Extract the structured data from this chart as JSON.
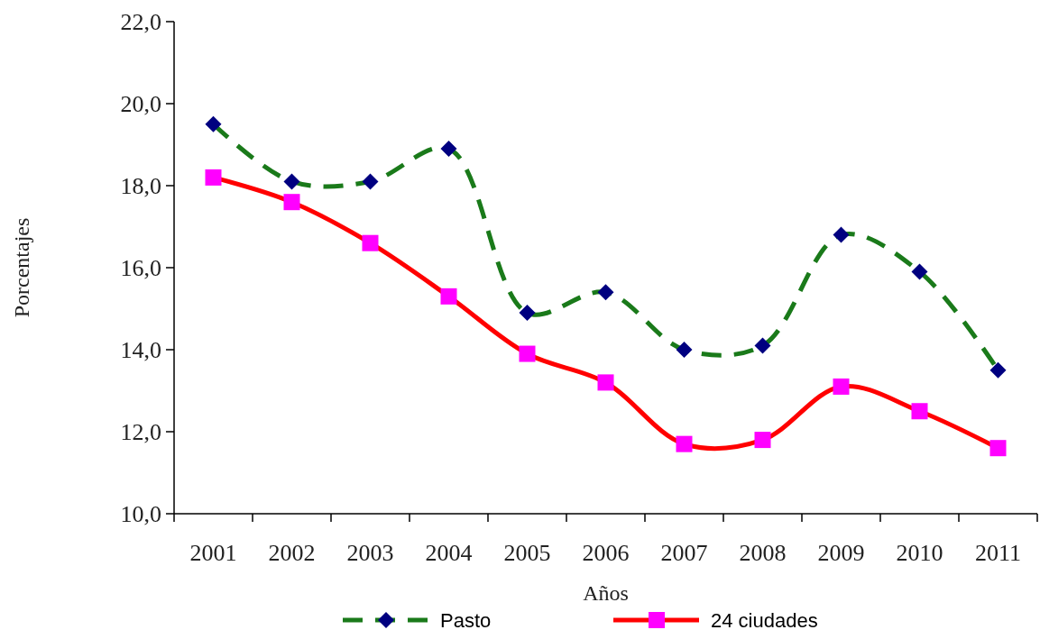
{
  "chart_data": {
    "type": "line",
    "xlabel": "Años",
    "ylabel": "Porcentajes",
    "categories": [
      "2001",
      "2002",
      "2003",
      "2004",
      "2005",
      "2006",
      "2007",
      "2008",
      "2009",
      "2010",
      "2011"
    ],
    "series": [
      {
        "name": "Pasto",
        "color": "#1a7a1a",
        "colors": [
          "#000080",
          "#000080",
          "#000080",
          "#000080",
          "#000080",
          "#000080",
          "#000080",
          "#000080",
          "#000080",
          "#000080",
          "#000080"
        ],
        "marker": "diamond",
        "line_style": "dashed",
        "values": [
          19.5,
          18.1,
          18.1,
          18.9,
          14.9,
          15.4,
          14.0,
          14.1,
          16.8,
          15.9,
          13.5
        ]
      },
      {
        "name": "24 ciudades",
        "color": "#ff0000",
        "colors": [
          "#ff00ff",
          "#ff00ff",
          "#ff00ff",
          "#ff00ff",
          "#ff00ff",
          "#ff00ff",
          "#ff00ff",
          "#ff00ff",
          "#ff00ff",
          "#ff00ff",
          "#ff00ff"
        ],
        "marker": "square",
        "line_style": "solid",
        "values": [
          18.2,
          17.6,
          16.6,
          15.3,
          13.9,
          13.2,
          11.7,
          11.8,
          13.1,
          12.5,
          11.6
        ]
      }
    ],
    "ylim": [
      10,
      22
    ],
    "yticks": [
      {
        "value": 10,
        "label": "10,0"
      },
      {
        "value": 12,
        "label": "12,0"
      },
      {
        "value": 14,
        "label": "14,0"
      },
      {
        "value": 16,
        "label": "16,0"
      },
      {
        "value": 18,
        "label": "18,0"
      },
      {
        "value": 20,
        "label": "20,0"
      },
      {
        "value": 22,
        "label": "22,0"
      }
    ],
    "grid": false,
    "legend": "bottom"
  }
}
